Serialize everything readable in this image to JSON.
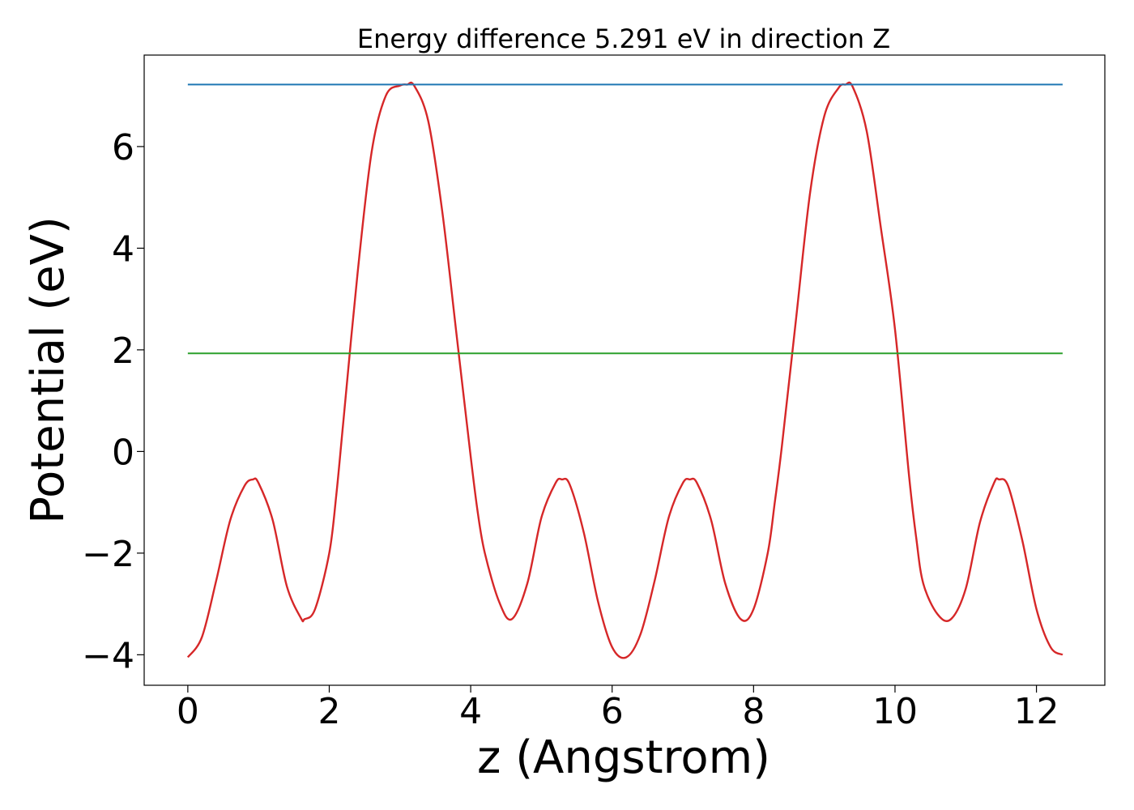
{
  "chart_data": {
    "type": "line",
    "title": "Energy difference 5.291 eV in direction Z",
    "xlabel": "z (Angstrom)",
    "ylabel": "Potential (eV)",
    "xlim": [
      -0.617,
      12.967
    ],
    "ylim": [
      -4.6,
      7.8
    ],
    "xticks": [
      0,
      2,
      4,
      6,
      8,
      10,
      12
    ],
    "yticks": [
      -4,
      -2,
      0,
      2,
      4,
      6
    ],
    "xtick_labels": [
      "0",
      "2",
      "4",
      "6",
      "8",
      "10",
      "12"
    ],
    "ytick_labels": [
      "−4",
      "−2",
      "0",
      "2",
      "4",
      "6"
    ],
    "grid": false,
    "series": [
      {
        "color": "#d62728",
        "x": [
          0.0,
          0.2,
          0.4,
          0.6,
          0.8,
          0.92,
          1.0,
          1.2,
          1.4,
          1.6,
          1.65,
          1.8,
          2.0,
          2.1,
          2.2,
          2.4,
          2.6,
          2.8,
          3.0,
          3.1,
          3.2,
          3.4,
          3.6,
          3.8,
          4.0,
          4.1,
          4.2,
          4.4,
          4.58,
          4.8,
          5.0,
          5.2,
          5.29,
          5.4,
          5.6,
          5.8,
          6.0,
          6.2,
          6.4,
          6.6,
          6.8,
          7.0,
          7.1,
          7.2,
          7.4,
          7.6,
          7.82,
          8.0,
          8.2,
          8.3,
          8.4,
          8.6,
          8.8,
          9.0,
          9.2,
          9.3,
          9.4,
          9.6,
          9.8,
          10.0,
          10.2,
          10.3,
          10.4,
          10.6,
          10.79,
          11.0,
          11.2,
          11.4,
          11.47,
          11.6,
          11.8,
          12.0,
          12.2,
          12.37
        ],
        "values": [
          -4.05,
          -3.65,
          -2.55,
          -1.35,
          -0.68,
          -0.55,
          -0.62,
          -1.35,
          -2.65,
          -3.28,
          -3.3,
          -3.1,
          -2.0,
          -0.85,
          0.6,
          3.5,
          5.9,
          7.0,
          7.2,
          7.22,
          7.2,
          6.5,
          4.7,
          2.3,
          -0.1,
          -1.2,
          -2.0,
          -2.95,
          -3.3,
          -2.6,
          -1.3,
          -0.62,
          -0.55,
          -0.65,
          -1.6,
          -2.95,
          -3.85,
          -4.05,
          -3.6,
          -2.55,
          -1.3,
          -0.62,
          -0.55,
          -0.62,
          -1.35,
          -2.6,
          -3.3,
          -3.1,
          -2.0,
          -1.0,
          0.1,
          2.6,
          5.1,
          6.6,
          7.15,
          7.22,
          7.18,
          6.3,
          4.4,
          2.4,
          -0.5,
          -1.7,
          -2.6,
          -3.2,
          -3.3,
          -2.7,
          -1.4,
          -0.62,
          -0.55,
          -0.68,
          -1.75,
          -3.1,
          -3.85,
          -4.0
        ]
      },
      {
        "color": "#1f77b4",
        "x": [
          0.0,
          12.37
        ],
        "values": [
          7.22,
          7.22
        ]
      },
      {
        "color": "#2ca02c",
        "x": [
          0.0,
          12.37
        ],
        "values": [
          1.93,
          1.93
        ]
      }
    ]
  }
}
